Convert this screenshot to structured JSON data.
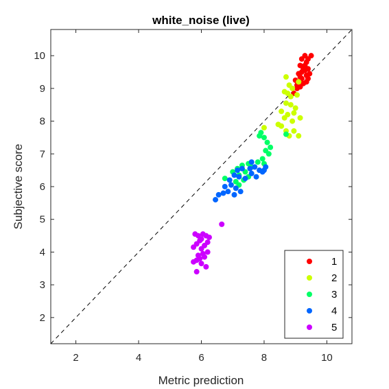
{
  "chart_data": {
    "type": "scatter",
    "title": "white_noise (live)",
    "xlabel": "Metric prediction",
    "ylabel": "Subjective score",
    "xlim": [
      1.2,
      10.8
    ],
    "ylim": [
      1.2,
      10.8
    ],
    "xticks": [
      2,
      4,
      6,
      8,
      10
    ],
    "yticks": [
      2,
      3,
      4,
      5,
      6,
      7,
      8,
      9,
      10
    ],
    "grid": false,
    "reference_line": "y = x (dashed)",
    "legend_position": "bottom-right",
    "series": [
      {
        "name": "1",
        "color": "#ff0000",
        "points": [
          [
            8.95,
            8.85
          ],
          [
            9.05,
            9.0
          ],
          [
            9.1,
            9.2
          ],
          [
            9.15,
            9.35
          ],
          [
            9.2,
            9.5
          ],
          [
            9.25,
            9.6
          ],
          [
            9.3,
            9.7
          ],
          [
            9.35,
            9.8
          ],
          [
            9.4,
            9.9
          ],
          [
            9.2,
            9.9
          ],
          [
            9.3,
            10.0
          ],
          [
            9.5,
            10.0
          ],
          [
            9.4,
            9.6
          ],
          [
            9.45,
            9.45
          ],
          [
            9.35,
            9.4
          ],
          [
            9.1,
            9.45
          ],
          [
            9.2,
            9.3
          ],
          [
            9.0,
            9.25
          ],
          [
            9.25,
            9.15
          ],
          [
            9.15,
            9.7
          ],
          [
            9.3,
            9.55
          ],
          [
            9.4,
            9.3
          ],
          [
            9.05,
            9.1
          ],
          [
            9.15,
            9.05
          ],
          [
            9.35,
            9.2
          ]
        ]
      },
      {
        "name": "2",
        "color": "#ccff00",
        "points": [
          [
            8.7,
            9.35
          ],
          [
            8.8,
            9.1
          ],
          [
            8.9,
            9.0
          ],
          [
            8.75,
            8.85
          ],
          [
            8.85,
            8.75
          ],
          [
            9.05,
            8.8
          ],
          [
            9.1,
            9.2
          ],
          [
            8.7,
            8.55
          ],
          [
            8.85,
            8.5
          ],
          [
            9.0,
            8.4
          ],
          [
            8.55,
            8.3
          ],
          [
            8.75,
            8.2
          ],
          [
            8.95,
            8.25
          ],
          [
            8.65,
            8.1
          ],
          [
            8.9,
            8.0
          ],
          [
            9.15,
            8.1
          ],
          [
            8.45,
            7.9
          ],
          [
            8.55,
            7.85
          ],
          [
            8.7,
            7.7
          ],
          [
            8.95,
            7.7
          ],
          [
            9.1,
            7.55
          ],
          [
            8.8,
            7.55
          ],
          [
            8.0,
            7.8
          ],
          [
            8.65,
            8.9
          ]
        ]
      },
      {
        "name": "3",
        "color": "#00ff66",
        "points": [
          [
            7.85,
            7.55
          ],
          [
            8.0,
            7.5
          ],
          [
            7.9,
            7.65
          ],
          [
            8.1,
            7.35
          ],
          [
            8.2,
            7.2
          ],
          [
            8.05,
            7.1
          ],
          [
            8.15,
            7.0
          ],
          [
            7.95,
            6.85
          ],
          [
            8.0,
            6.7
          ],
          [
            7.8,
            6.75
          ],
          [
            7.5,
            6.7
          ],
          [
            7.3,
            6.65
          ],
          [
            7.15,
            6.55
          ],
          [
            7.0,
            6.45
          ],
          [
            7.2,
            6.35
          ],
          [
            7.4,
            6.45
          ],
          [
            7.5,
            6.3
          ],
          [
            7.1,
            6.15
          ],
          [
            6.75,
            6.25
          ],
          [
            7.2,
            6.05
          ],
          [
            7.35,
            6.2
          ],
          [
            7.6,
            6.6
          ],
          [
            8.7,
            7.6
          ]
        ]
      },
      {
        "name": "4",
        "color": "#0066ff",
        "points": [
          [
            7.3,
            6.55
          ],
          [
            7.55,
            6.55
          ],
          [
            7.7,
            6.6
          ],
          [
            7.85,
            6.5
          ],
          [
            8.0,
            6.5
          ],
          [
            7.6,
            6.4
          ],
          [
            7.75,
            6.3
          ],
          [
            7.95,
            6.45
          ],
          [
            8.05,
            6.6
          ],
          [
            7.4,
            6.25
          ],
          [
            7.2,
            6.3
          ],
          [
            7.05,
            6.35
          ],
          [
            6.9,
            6.2
          ],
          [
            6.95,
            6.05
          ],
          [
            7.1,
            5.95
          ],
          [
            7.25,
            5.85
          ],
          [
            7.05,
            5.75
          ],
          [
            6.85,
            5.85
          ],
          [
            6.7,
            5.8
          ],
          [
            6.55,
            5.75
          ],
          [
            6.45,
            5.6
          ],
          [
            7.15,
            6.5
          ],
          [
            6.75,
            6.0
          ],
          [
            7.6,
            6.75
          ]
        ]
      },
      {
        "name": "5",
        "color": "#cc00ff",
        "points": [
          [
            5.8,
            4.55
          ],
          [
            5.9,
            4.5
          ],
          [
            6.05,
            4.55
          ],
          [
            6.15,
            4.5
          ],
          [
            6.25,
            4.45
          ],
          [
            6.2,
            4.3
          ],
          [
            6.1,
            4.2
          ],
          [
            5.95,
            4.35
          ],
          [
            5.85,
            4.25
          ],
          [
            6.0,
            4.1
          ],
          [
            5.75,
            4.15
          ],
          [
            6.05,
            3.95
          ],
          [
            6.1,
            3.85
          ],
          [
            5.95,
            3.8
          ],
          [
            5.85,
            3.75
          ],
          [
            5.75,
            3.7
          ],
          [
            6.0,
            3.65
          ],
          [
            6.15,
            3.55
          ],
          [
            5.85,
            3.4
          ],
          [
            6.65,
            4.85
          ],
          [
            6.0,
            4.4
          ],
          [
            5.9,
            3.9
          ],
          [
            6.2,
            4.0
          ]
        ]
      }
    ]
  }
}
